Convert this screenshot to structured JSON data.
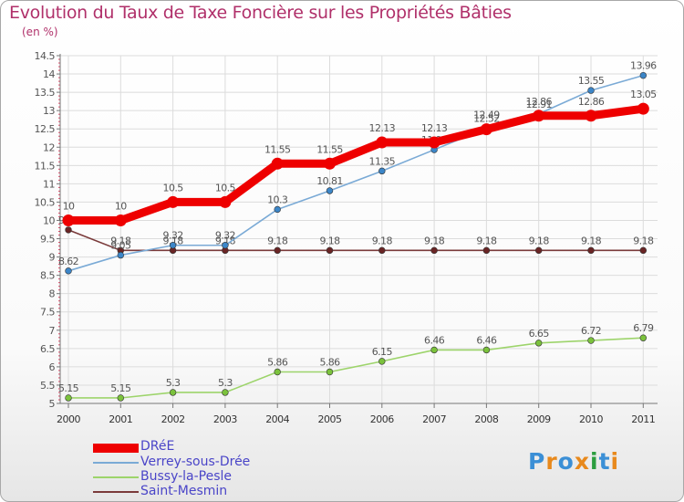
{
  "title": "Evolution du Taux de Taxe Foncière sur les Propriétés Bâties",
  "subtitle": "(en %)",
  "logo": {
    "text": "Proxiti",
    "letters": [
      "P",
      "r",
      "o",
      "x",
      "i",
      "t",
      "i"
    ],
    "colors": [
      "#3b8fd6",
      "#e8891c",
      "#3b8fd6",
      "#e8891c",
      "#2d9e40",
      "#3b8fd6",
      "#e8891c"
    ]
  },
  "chart_data": {
    "type": "line",
    "title": "Evolution du Taux de Taxe Foncière sur les Propriétés Bâties",
    "ylabel": "(en %)",
    "categories": [
      "2000",
      "2001",
      "2002",
      "2003",
      "2004",
      "2005",
      "2006",
      "2007",
      "2008",
      "2009",
      "2010",
      "2011"
    ],
    "ylim": [
      5,
      14.5
    ],
    "yticks": [
      "5",
      "5.5",
      "6",
      "6.5",
      "7",
      "7.5",
      "8",
      "8.5",
      "9",
      "9.5",
      "10",
      "10.5",
      "11",
      "11.5",
      "12",
      "12.5",
      "13",
      "13.5",
      "14",
      "14.5"
    ],
    "grid": true,
    "legend_position": "bottom-left",
    "series": [
      {
        "name": "Bussy-la-Pesle",
        "color": "#9dd46b",
        "marker": "#7bc23c",
        "values": [
          5.15,
          5.15,
          5.3,
          5.3,
          5.86,
          5.86,
          6.15,
          6.46,
          6.46,
          6.65,
          6.72,
          6.79
        ],
        "labels": [
          "5.15",
          "5.15",
          "5.3",
          "5.3",
          "5.86",
          "5.86",
          "6.15",
          "6.46",
          "6.46",
          "6.65",
          "6.72",
          "6.79"
        ]
      },
      {
        "name": "Saint-Mesmin",
        "color": "#7a3a3a",
        "marker": "#6a2525",
        "values": [
          9.74,
          9.18,
          9.18,
          9.18,
          9.18,
          9.18,
          9.18,
          9.18,
          9.18,
          9.18,
          9.18,
          9.18
        ],
        "labels": [
          "9.74",
          "9.18",
          "9.18",
          "9.18",
          "9.18",
          "9.18",
          "9.18",
          "9.18",
          "9.18",
          "9.18",
          "9.18",
          "9.18"
        ]
      },
      {
        "name": "Verrey-sous-Drée",
        "color": "#7aaad6",
        "marker": "#3c86c8",
        "values": [
          8.62,
          9.05,
          9.32,
          9.32,
          10.3,
          10.81,
          11.35,
          11.93,
          12.52,
          12.91,
          13.55,
          13.96
        ],
        "labels": [
          "8.62",
          "9.05",
          "9.32",
          "9.32",
          "10.3",
          "10.81",
          "11.35",
          "11.93",
          "12.52",
          "12.91",
          "13.55",
          "13.96"
        ]
      },
      {
        "name": "DRéE",
        "color": "#ee0000",
        "marker": "#ee0000",
        "values": [
          10,
          10,
          10.5,
          10.5,
          11.55,
          11.55,
          12.13,
          12.13,
          12.49,
          12.86,
          12.86,
          13.05
        ],
        "labels": [
          "10",
          "10",
          "10.5",
          "10.5",
          "11.55",
          "11.55",
          "12.13",
          "12.13",
          "12.49",
          "12.86",
          "12.86",
          "13.05"
        ]
      }
    ]
  },
  "legend": [
    {
      "name": "DRéE",
      "color": "#ee0000"
    },
    {
      "name": "Verrey-sous-Drée",
      "color": "#7aaad6"
    },
    {
      "name": "Bussy-la-Pesle",
      "color": "#9dd46b"
    },
    {
      "name": "Saint-Mesmin",
      "color": "#7a3a3a"
    }
  ]
}
